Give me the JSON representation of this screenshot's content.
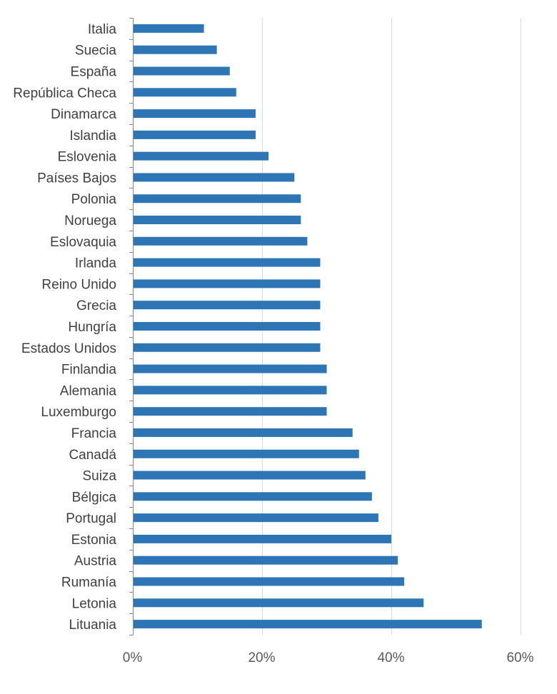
{
  "chart_data": {
    "type": "bar",
    "orientation": "horizontal",
    "title": "",
    "xlabel": "",
    "ylabel": "",
    "categories": [
      "Italia",
      "Suecia",
      "España",
      "República Checa",
      "Dinamarca",
      "Islandia",
      "Eslovenia",
      "Países Bajos",
      "Polonia",
      "Noruega",
      "Eslovaquia",
      "Irlanda",
      "Reino Unido",
      "Grecia",
      "Hungría",
      "Estados Unidos",
      "Finlandia",
      "Alemania",
      "Luxemburgo",
      "Francia",
      "Canadá",
      "Suiza",
      "Bélgica",
      "Portugal",
      "Estonia",
      "Austria",
      "Rumanía",
      "Letonia",
      "Lituania"
    ],
    "values": [
      11,
      13,
      15,
      16,
      19,
      19,
      21,
      25,
      26,
      26,
      27,
      29,
      29,
      29,
      29,
      29,
      30,
      30,
      30,
      34,
      35,
      36,
      37,
      38,
      40,
      41,
      42,
      45,
      54
    ],
    "xlim": [
      0,
      60
    ],
    "xticks": [
      0,
      20,
      40,
      60
    ],
    "xtick_labels": [
      "0%",
      "20%",
      "40%",
      "60%"
    ],
    "grid": true,
    "legend": "none",
    "bar_color": "#2e75b6"
  }
}
